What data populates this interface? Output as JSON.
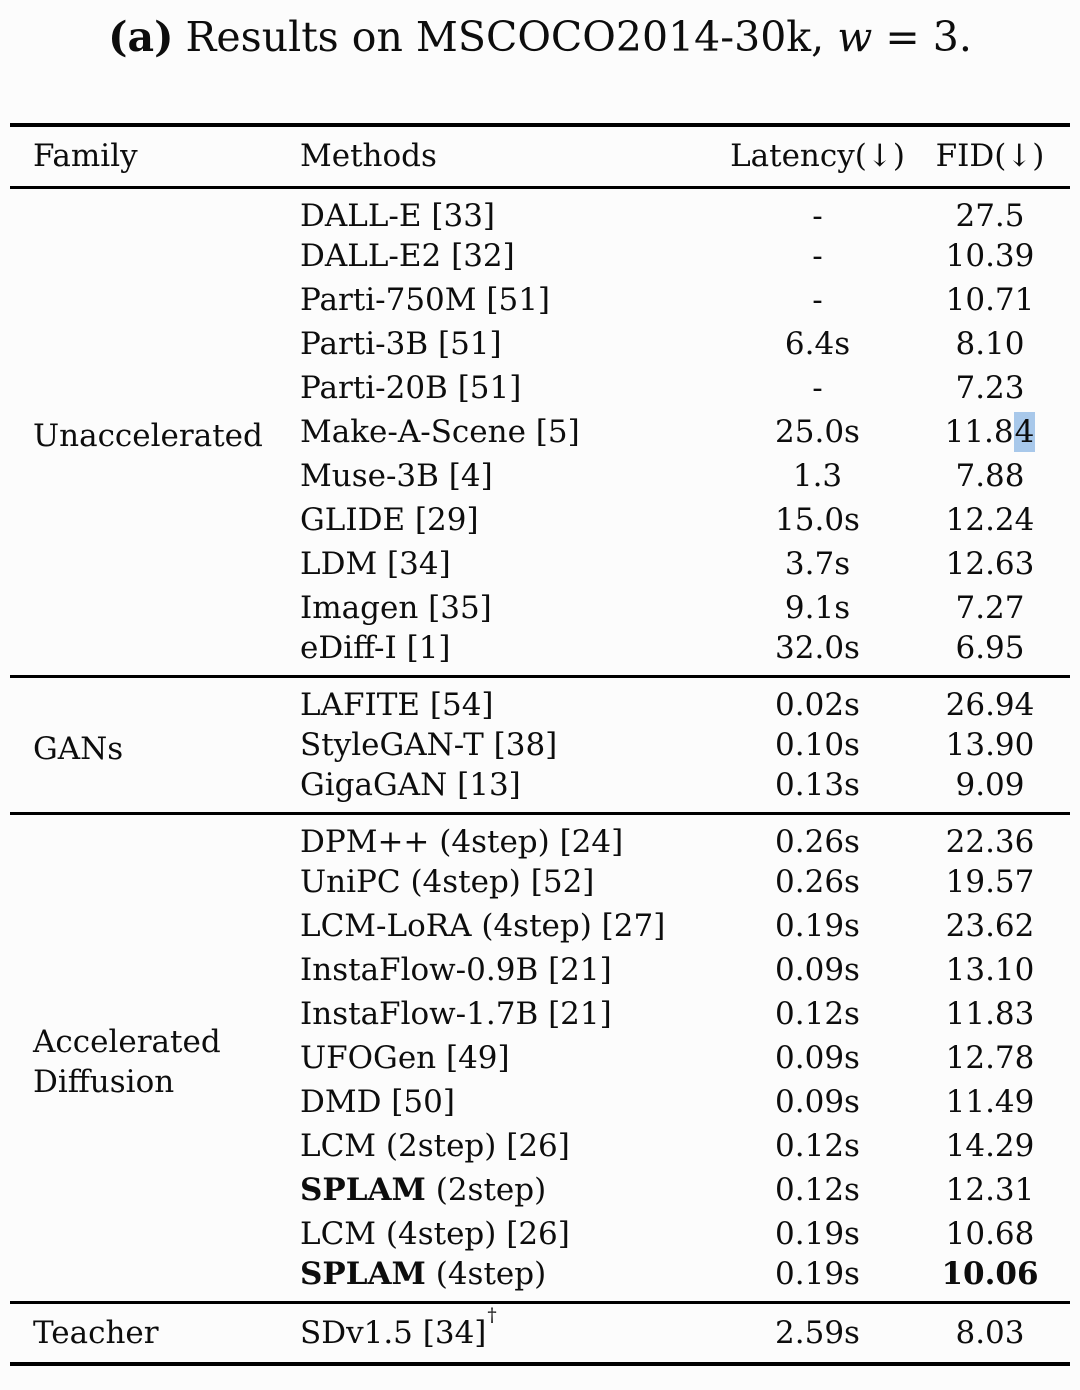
{
  "caption": {
    "label": "(a)",
    "body": "Results on MSCOCO2014-30k, ",
    "var": "w",
    "tail": " = 3."
  },
  "selection_highlight_color": "#a8c8ea",
  "table": {
    "headers": [
      "Family",
      "Methods",
      "Latency(↓)",
      "FID(↓)"
    ],
    "groups": [
      {
        "family": "Unaccelerated",
        "rows": [
          {
            "method": "DALL-E [33]",
            "latency": "-",
            "fid": "27.5"
          },
          {
            "method": "DALL-E2 [32]",
            "latency": "-",
            "fid": "10.39"
          },
          {
            "method": "Parti-750M [51]",
            "latency": "-",
            "fid": "10.71"
          },
          {
            "method": "Parti-3B [51]",
            "latency": "6.4s",
            "fid": "8.10"
          },
          {
            "method": "Parti-20B [51]",
            "latency": "-",
            "fid": "7.23"
          },
          {
            "method": "Make-A-Scene [5]",
            "latency": "25.0s",
            "fid": "11.84",
            "fid_highlight_last": true
          },
          {
            "method": "Muse-3B [4]",
            "latency": "1.3",
            "fid": "7.88"
          },
          {
            "method": "GLIDE [29]",
            "latency": "15.0s",
            "fid": "12.24"
          },
          {
            "method": "LDM [34]",
            "latency": "3.7s",
            "fid": "12.63"
          },
          {
            "method": "Imagen [35]",
            "latency": "9.1s",
            "fid": "7.27"
          },
          {
            "method": "eDiff-I [1]",
            "latency": "32.0s",
            "fid": "6.95"
          }
        ]
      },
      {
        "family": "GANs",
        "rows": [
          {
            "method": "LAFITE [54]",
            "latency": "0.02s",
            "fid": "26.94"
          },
          {
            "method": "StyleGAN-T [38]",
            "latency": "0.10s",
            "fid": "13.90"
          },
          {
            "method": "GigaGAN [13]",
            "latency": "0.13s",
            "fid": "9.09"
          }
        ]
      },
      {
        "family": "Accelerated Diffusion",
        "rows": [
          {
            "method": "DPM++ (4step) [24]",
            "latency": "0.26s",
            "fid": "22.36"
          },
          {
            "method": "UniPC (4step) [52]",
            "latency": "0.26s",
            "fid": "19.57"
          },
          {
            "method": "LCM-LoRA (4step) [27]",
            "latency": "0.19s",
            "fid": "23.62"
          },
          {
            "method": "InstaFlow-0.9B [21]",
            "latency": "0.09s",
            "fid": "13.10"
          },
          {
            "method": "InstaFlow-1.7B [21]",
            "latency": "0.12s",
            "fid": "11.83"
          },
          {
            "method": "UFOGen [49]",
            "latency": "0.09s",
            "fid": "12.78"
          },
          {
            "method": "DMD [50]",
            "latency": "0.09s",
            "fid": "11.49"
          },
          {
            "method": "LCM (2step) [26]",
            "latency": "0.12s",
            "fid": "14.29"
          },
          {
            "method_bold": "SPLAM",
            "method": " (2step)",
            "latency": "0.12s",
            "fid": "12.31"
          },
          {
            "method": "LCM (4step) [26]",
            "latency": "0.19s",
            "fid": "10.68"
          },
          {
            "method_bold": "SPLAM",
            "method": " (4step)",
            "latency": "0.19s",
            "fid": "10.06",
            "fid_bold": true
          }
        ]
      },
      {
        "family": "Teacher",
        "rows": [
          {
            "method": "SDv1.5 [34]",
            "sup": "†",
            "latency": "2.59s",
            "fid": "8.03"
          }
        ]
      }
    ]
  }
}
